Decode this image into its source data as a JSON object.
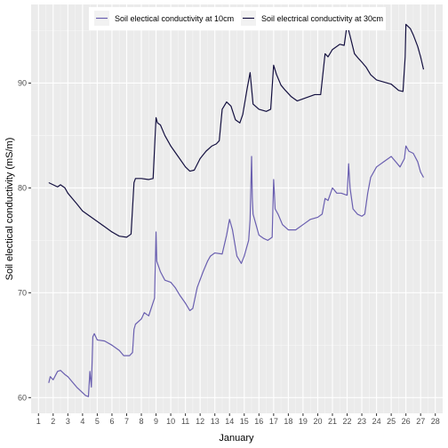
{
  "chart_data": {
    "type": "line",
    "xlabel": "January",
    "ylabel": "Soil electical conductivity (mS/m)",
    "xlim": [
      0.5,
      28.5
    ],
    "ylim": [
      58.5,
      97.5
    ],
    "x_ticks": [
      1,
      2,
      3,
      4,
      5,
      6,
      7,
      8,
      9,
      10,
      11,
      12,
      13,
      14,
      15,
      16,
      17,
      18,
      19,
      20,
      21,
      22,
      23,
      24,
      25,
      26,
      27,
      28
    ],
    "y_ticks": [
      60,
      70,
      80,
      90
    ],
    "grid": true,
    "legend_position": "top",
    "series": [
      {
        "name": "Soil electical conductivity at 10cm",
        "color": "#6a5fb0",
        "points": [
          [
            1.7,
            61.4
          ],
          [
            1.8,
            62.0
          ],
          [
            2.0,
            61.7
          ],
          [
            2.3,
            62.5
          ],
          [
            2.5,
            62.6
          ],
          [
            2.8,
            62.2
          ],
          [
            3.0,
            62.0
          ],
          [
            3.3,
            61.5
          ],
          [
            3.6,
            61.0
          ],
          [
            3.9,
            60.6
          ],
          [
            4.2,
            60.2
          ],
          [
            4.4,
            60.1
          ],
          [
            4.5,
            62.5
          ],
          [
            4.6,
            61.0
          ],
          [
            4.7,
            65.8
          ],
          [
            4.8,
            66.1
          ],
          [
            5.0,
            65.5
          ],
          [
            5.5,
            65.4
          ],
          [
            6.0,
            65.0
          ],
          [
            6.5,
            64.5
          ],
          [
            6.8,
            64.0
          ],
          [
            7.2,
            64.0
          ],
          [
            7.4,
            64.3
          ],
          [
            7.5,
            66.5
          ],
          [
            7.6,
            67.0
          ],
          [
            8.0,
            67.5
          ],
          [
            8.2,
            68.1
          ],
          [
            8.5,
            67.8
          ],
          [
            8.9,
            69.5
          ],
          [
            9.0,
            75.8
          ],
          [
            9.05,
            73.0
          ],
          [
            9.1,
            72.8
          ],
          [
            9.3,
            72.0
          ],
          [
            9.6,
            71.2
          ],
          [
            10.0,
            71.0
          ],
          [
            10.3,
            70.5
          ],
          [
            10.6,
            69.8
          ],
          [
            11.0,
            69.0
          ],
          [
            11.3,
            68.3
          ],
          [
            11.5,
            68.5
          ],
          [
            11.8,
            70.5
          ],
          [
            12.2,
            72.0
          ],
          [
            12.5,
            73.0
          ],
          [
            12.7,
            73.5
          ],
          [
            13.0,
            73.8
          ],
          [
            13.5,
            73.7
          ],
          [
            13.8,
            75.5
          ],
          [
            14.0,
            77.0
          ],
          [
            14.2,
            76.0
          ],
          [
            14.5,
            73.5
          ],
          [
            14.8,
            72.8
          ],
          [
            15.0,
            73.5
          ],
          [
            15.3,
            75.0
          ],
          [
            15.4,
            77.0
          ],
          [
            15.5,
            83.0
          ],
          [
            15.55,
            79.0
          ],
          [
            15.6,
            77.5
          ],
          [
            15.8,
            76.5
          ],
          [
            16.0,
            75.5
          ],
          [
            16.3,
            75.2
          ],
          [
            16.6,
            75.0
          ],
          [
            16.9,
            75.3
          ],
          [
            17.0,
            80.8
          ],
          [
            17.05,
            79.5
          ],
          [
            17.1,
            78.0
          ],
          [
            17.3,
            77.5
          ],
          [
            17.6,
            76.5
          ],
          [
            18.0,
            76.0
          ],
          [
            18.5,
            76.0
          ],
          [
            19.0,
            76.5
          ],
          [
            19.5,
            77.0
          ],
          [
            20.0,
            77.2
          ],
          [
            20.3,
            77.5
          ],
          [
            20.5,
            79.0
          ],
          [
            20.7,
            78.8
          ],
          [
            21.0,
            80.0
          ],
          [
            21.3,
            79.5
          ],
          [
            21.6,
            79.5
          ],
          [
            22.0,
            79.3
          ],
          [
            22.1,
            82.3
          ],
          [
            22.2,
            80.0
          ],
          [
            22.4,
            78.0
          ],
          [
            22.7,
            77.5
          ],
          [
            23.0,
            77.3
          ],
          [
            23.2,
            77.5
          ],
          [
            23.4,
            79.5
          ],
          [
            23.6,
            81.0
          ],
          [
            24.0,
            82.0
          ],
          [
            24.5,
            82.5
          ],
          [
            25.0,
            83.0
          ],
          [
            25.3,
            82.5
          ],
          [
            25.6,
            82.0
          ],
          [
            25.9,
            82.8
          ],
          [
            26.0,
            84.0
          ],
          [
            26.2,
            83.5
          ],
          [
            26.5,
            83.3
          ],
          [
            26.8,
            82.5
          ],
          [
            27.0,
            81.5
          ],
          [
            27.2,
            81.0
          ]
        ]
      },
      {
        "name": "Soil electrical conductivity at 30cm",
        "color": "#141040",
        "points": [
          [
            1.7,
            80.5
          ],
          [
            2.0,
            80.3
          ],
          [
            2.3,
            80.1
          ],
          [
            2.5,
            80.3
          ],
          [
            2.8,
            80.0
          ],
          [
            3.0,
            79.5
          ],
          [
            3.3,
            79.0
          ],
          [
            3.6,
            78.5
          ],
          [
            4.0,
            77.8
          ],
          [
            4.5,
            77.3
          ],
          [
            5.0,
            76.8
          ],
          [
            5.5,
            76.3
          ],
          [
            6.0,
            75.8
          ],
          [
            6.5,
            75.4
          ],
          [
            7.0,
            75.3
          ],
          [
            7.3,
            75.6
          ],
          [
            7.5,
            80.5
          ],
          [
            7.6,
            80.9
          ],
          [
            8.0,
            80.9
          ],
          [
            8.5,
            80.8
          ],
          [
            8.8,
            80.9
          ],
          [
            9.0,
            86.7
          ],
          [
            9.1,
            86.2
          ],
          [
            9.3,
            86.0
          ],
          [
            9.6,
            85.0
          ],
          [
            10.0,
            84.0
          ],
          [
            10.5,
            83.0
          ],
          [
            11.0,
            82.0
          ],
          [
            11.3,
            81.6
          ],
          [
            11.6,
            81.7
          ],
          [
            12.0,
            82.8
          ],
          [
            12.4,
            83.5
          ],
          [
            12.8,
            84.0
          ],
          [
            13.1,
            84.2
          ],
          [
            13.3,
            84.5
          ],
          [
            13.5,
            87.5
          ],
          [
            13.8,
            88.2
          ],
          [
            14.1,
            87.8
          ],
          [
            14.4,
            86.5
          ],
          [
            14.7,
            86.2
          ],
          [
            14.9,
            87.0
          ],
          [
            15.2,
            89.5
          ],
          [
            15.4,
            91.0
          ],
          [
            15.6,
            88.0
          ],
          [
            16.0,
            87.5
          ],
          [
            16.5,
            87.3
          ],
          [
            16.8,
            87.5
          ],
          [
            17.0,
            91.7
          ],
          [
            17.2,
            90.8
          ],
          [
            17.5,
            89.8
          ],
          [
            17.8,
            89.3
          ],
          [
            18.2,
            88.7
          ],
          [
            18.6,
            88.3
          ],
          [
            19.0,
            88.5
          ],
          [
            19.4,
            88.7
          ],
          [
            19.8,
            88.9
          ],
          [
            20.2,
            88.9
          ],
          [
            20.5,
            92.8
          ],
          [
            20.7,
            92.5
          ],
          [
            21.0,
            93.2
          ],
          [
            21.5,
            93.7
          ],
          [
            21.8,
            93.6
          ],
          [
            22.0,
            95.6
          ],
          [
            22.2,
            94.5
          ],
          [
            22.5,
            92.8
          ],
          [
            22.8,
            92.3
          ],
          [
            23.0,
            92.0
          ],
          [
            23.3,
            91.5
          ],
          [
            23.6,
            90.8
          ],
          [
            24.0,
            90.3
          ],
          [
            24.5,
            90.1
          ],
          [
            25.0,
            89.9
          ],
          [
            25.5,
            89.3
          ],
          [
            25.8,
            89.2
          ],
          [
            25.95,
            92.5
          ],
          [
            26.0,
            95.6
          ],
          [
            26.3,
            95.2
          ],
          [
            26.5,
            94.6
          ],
          [
            26.8,
            93.5
          ],
          [
            27.0,
            92.5
          ],
          [
            27.2,
            91.3
          ]
        ]
      }
    ]
  }
}
